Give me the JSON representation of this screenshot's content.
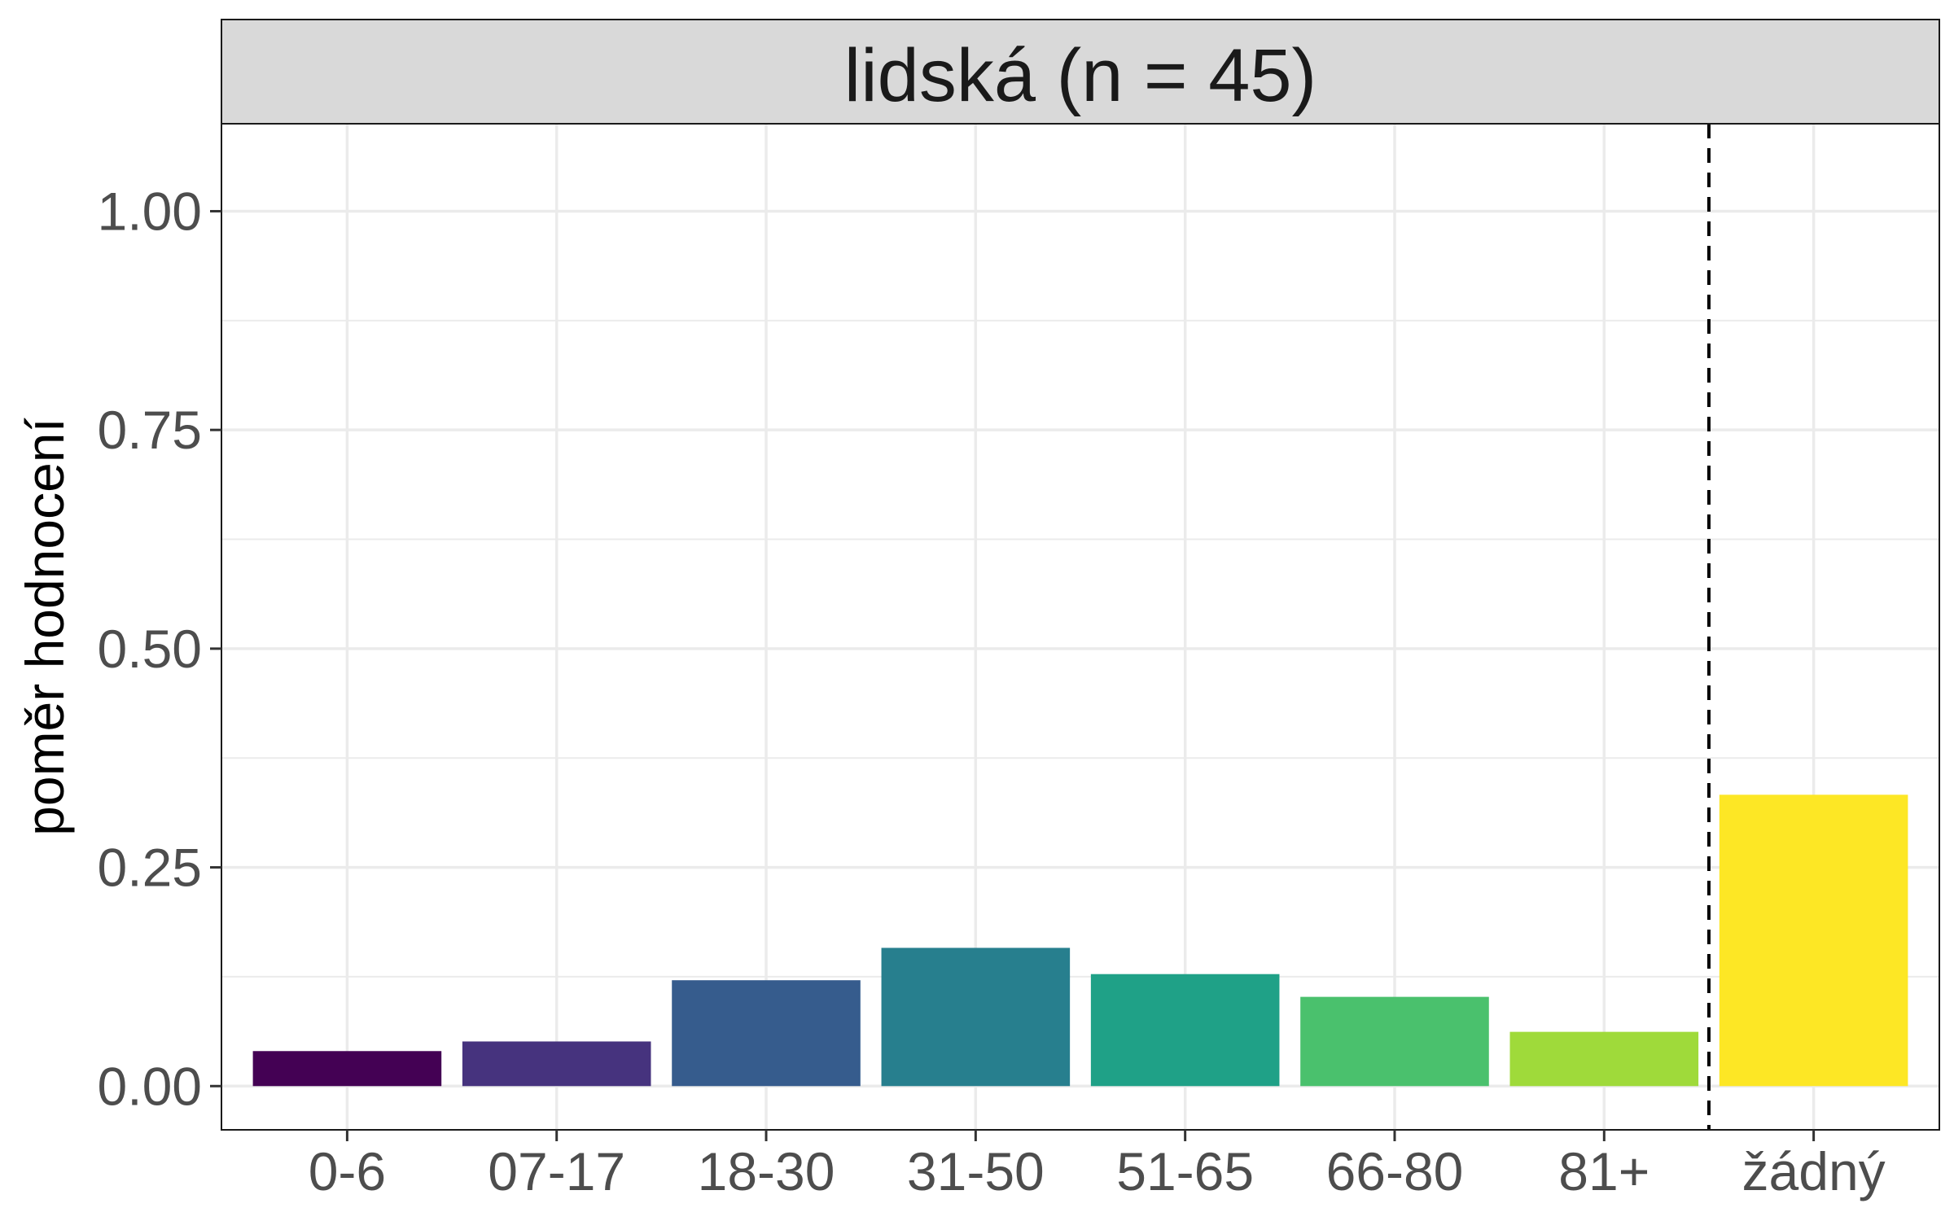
{
  "chart_data": {
    "type": "bar",
    "facet_label": "lidská (n = 45)",
    "categories": [
      "0-6",
      "07-17",
      "18-30",
      "31-50",
      "51-65",
      "66-80",
      "81+",
      "žádný"
    ],
    "values": [
      0.04,
      0.051,
      0.121,
      0.158,
      0.128,
      0.102,
      0.062,
      0.333
    ],
    "colors": [
      "#440154",
      "#46337E",
      "#365C8D",
      "#277F8E",
      "#1FA187",
      "#4AC16D",
      "#9FDA3A",
      "#FDE725"
    ],
    "xlabel": "",
    "ylabel": "poměr hodnocení",
    "ylim": [
      -0.05,
      1.1
    ],
    "yticks": [
      0,
      0.25,
      0.5,
      0.75,
      1.0
    ],
    "ytick_labels": [
      "0.00",
      "0.25",
      "0.50",
      "0.75",
      "1.00"
    ],
    "reference_line": {
      "style": "dashed",
      "between": [
        "81+",
        "žádný"
      ]
    },
    "grid": true,
    "legend": "none"
  }
}
